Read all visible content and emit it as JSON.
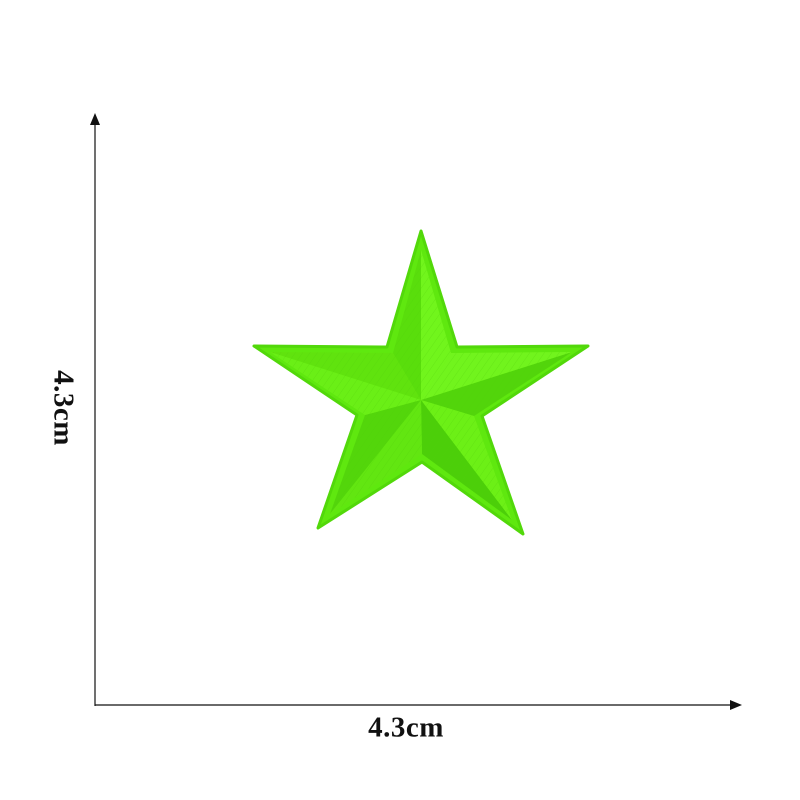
{
  "product": {
    "name": "green-star-embroidered-patch",
    "color": "#66ee11",
    "color_dark": "#3fb80a",
    "color_light": "#8cff3a"
  },
  "dimensions": {
    "width_label": "4.3cm",
    "height_label": "4.3cm",
    "line_color": "#111111"
  }
}
